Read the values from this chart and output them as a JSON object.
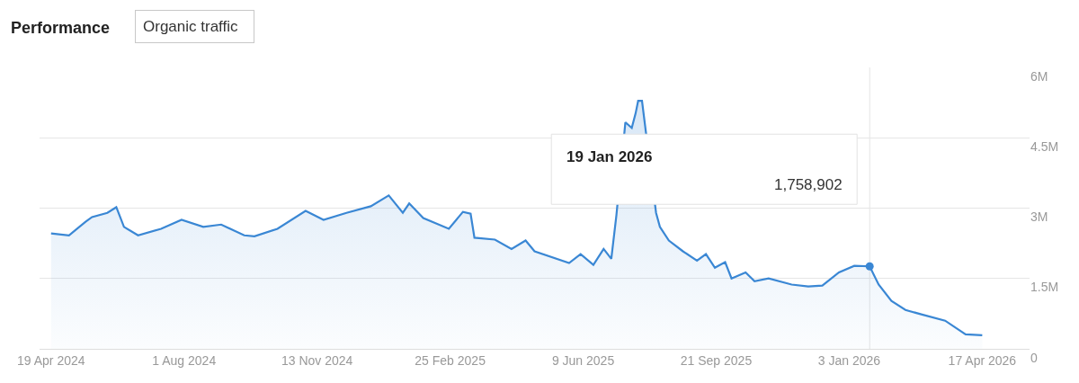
{
  "chart_data": {
    "type": "area",
    "title": "Performance",
    "subtitle": "Organic traffic",
    "x": [
      "2024-04-19",
      "2024-05-03",
      "2024-05-16",
      "2024-05-21",
      "2024-06-02",
      "2024-06-09",
      "2024-06-15",
      "2024-06-26",
      "2024-07-14",
      "2024-07-30",
      "2024-08-16",
      "2024-08-30",
      "2024-09-17",
      "2024-09-25",
      "2024-10-13",
      "2024-11-04",
      "2024-11-18",
      "2024-12-06",
      "2024-12-25",
      "2025-01-08",
      "2025-01-19",
      "2025-01-24",
      "2025-02-04",
      "2025-02-24",
      "2025-03-07",
      "2025-03-13",
      "2025-03-16",
      "2025-04-01",
      "2025-04-14",
      "2025-04-25",
      "2025-05-02",
      "2025-05-29",
      "2025-06-07",
      "2025-06-17",
      "2025-06-25",
      "2025-07-01",
      "2025-07-05",
      "2025-07-12",
      "2025-07-17",
      "2025-07-20",
      "2025-07-22",
      "2025-07-25",
      "2025-07-28",
      "2025-08-05",
      "2025-08-08",
      "2025-08-15",
      "2025-08-26",
      "2025-09-06",
      "2025-09-13",
      "2025-09-20",
      "2025-09-28",
      "2025-10-03",
      "2025-10-14",
      "2025-10-21",
      "2025-11-01",
      "2025-11-19",
      "2025-12-02",
      "2025-12-13",
      "2025-12-26",
      "2026-01-07",
      "2026-01-19",
      "2026-01-26",
      "2026-02-05",
      "2026-02-16",
      "2026-03-01",
      "2026-03-19",
      "2026-04-04",
      "2026-04-17"
    ],
    "series": [
      {
        "color": "#3a87d4",
        "values": [
          2460000,
          2420000,
          2710000,
          2810000,
          2900000,
          3020000,
          2600000,
          2420000,
          2560000,
          2750000,
          2600000,
          2650000,
          2420000,
          2400000,
          2560000,
          2940000,
          2750000,
          2900000,
          3040000,
          3270000,
          2900000,
          3100000,
          2790000,
          2560000,
          2920000,
          2880000,
          2370000,
          2330000,
          2130000,
          2310000,
          2080000,
          1830000,
          2020000,
          1790000,
          2130000,
          1920000,
          2850000,
          4830000,
          4710000,
          5020000,
          5290000,
          5290000,
          4630000,
          2900000,
          2600000,
          2310000,
          2080000,
          1880000,
          2020000,
          1730000,
          1850000,
          1500000,
          1630000,
          1440000,
          1500000,
          1370000,
          1330000,
          1350000,
          1630000,
          1770000,
          1758902,
          1370000,
          1020000,
          830000,
          730000,
          600000,
          310000,
          290000
        ]
      }
    ],
    "xlim": [
      "2024-04-10",
      "2026-05-24"
    ],
    "xticks": [
      {
        "value": "2024-04-19",
        "label": "19 Apr 2024"
      },
      {
        "value": "2024-08-01",
        "label": "1 Aug 2024"
      },
      {
        "value": "2024-11-13",
        "label": "13 Nov 2024"
      },
      {
        "value": "2025-02-25",
        "label": "25 Feb 2025"
      },
      {
        "value": "2025-06-09",
        "label": "9 Jun 2025"
      },
      {
        "value": "2025-09-21",
        "label": "21 Sep 2025"
      },
      {
        "value": "2026-01-03",
        "label": "3 Jan 2026"
      },
      {
        "value": "2026-04-17",
        "label": "17 Apr 2026"
      }
    ],
    "ylim": [
      0,
      6000000
    ],
    "yticks": [
      {
        "value": 0,
        "label": "0"
      },
      {
        "value": 1500000,
        "label": "1.5M"
      },
      {
        "value": 3000000,
        "label": "3M"
      },
      {
        "value": 4500000,
        "label": "4.5M"
      },
      {
        "value": 6000000,
        "label": "6M"
      }
    ],
    "ref_lines": [
      {
        "axis": "x",
        "value": "2026-01-19",
        "color": "#e4e4e4"
      }
    ],
    "annotations": [
      "19 Jan 2026",
      "1,758,902"
    ],
    "grid": "y",
    "marker": "none"
  }
}
